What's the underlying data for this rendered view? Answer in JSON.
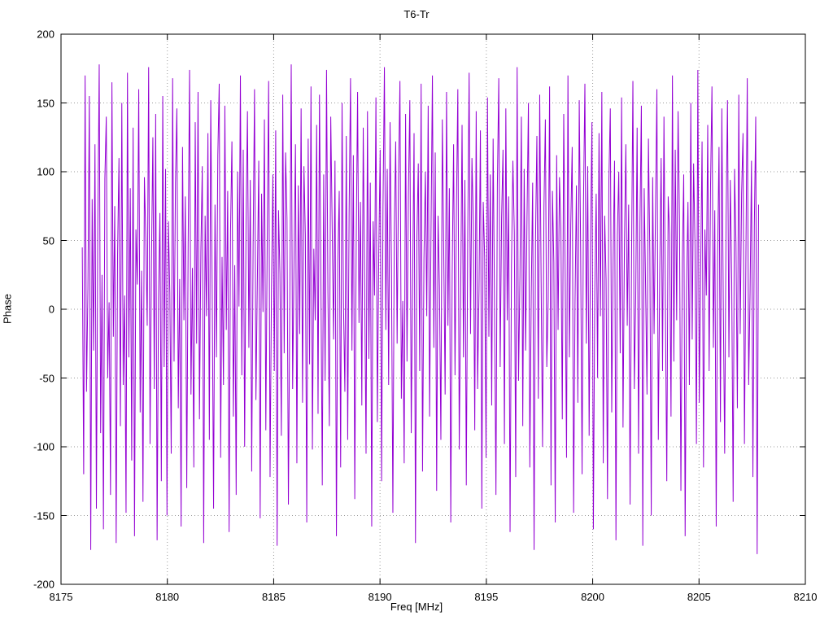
{
  "chart_data": {
    "type": "line",
    "title": "T6-Tr",
    "xlabel": "Freq [MHz]",
    "ylabel": "Phase",
    "xlim": [
      8175,
      8210
    ],
    "ylim": [
      -200,
      200
    ],
    "x_ticks": [
      8175,
      8180,
      8185,
      8190,
      8195,
      8200,
      8205,
      8210
    ],
    "y_ticks": [
      -200,
      -150,
      -100,
      -50,
      0,
      50,
      100,
      150,
      200
    ],
    "grid": "dotted",
    "legend": "none",
    "line_color": "#9400D3",
    "series": [
      {
        "name": "Phase",
        "x_start": 8176.0,
        "x_end": 8207.8,
        "values": [
          45,
          -120,
          170,
          -60,
          15,
          155,
          -175,
          80,
          -30,
          120,
          -145,
          60,
          178,
          -90,
          25,
          -160,
          95,
          140,
          -50,
          5,
          -135,
          165,
          -20,
          75,
          -170,
          40,
          110,
          -85,
          150,
          -55,
          10,
          -148,
          172,
          -35,
          88,
          -110,
          132,
          -165,
          58,
          18,
          160,
          -75,
          28,
          -140,
          96,
          52,
          -12,
          176,
          -98,
          34,
          125,
          -58,
          142,
          -168,
          8,
          70,
          -125,
          155,
          -42,
          102,
          -150,
          64,
          12,
          -105,
          168,
          -38,
          92,
          146,
          -72,
          22,
          -158,
          118,
          -8,
          82,
          -130,
          48,
          174,
          -62,
          30,
          -115,
          136,
          -25,
          158,
          -80,
          42,
          104,
          -170,
          68,
          -5,
          128,
          -95,
          152,
          16,
          -145,
          76,
          -35,
          112,
          164,
          -108,
          38,
          -55,
          148,
          -15,
          86,
          -162,
          56,
          122,
          -78,
          32,
          -135,
          100,
          2,
          170,
          -48,
          116,
          -100,
          62,
          144,
          -28,
          94,
          -118,
          46,
          160,
          -66,
          20,
          108,
          -152,
          84,
          -2,
          138,
          -88,
          50,
          166,
          -122,
          14,
          98,
          -45,
          130,
          -172,
          72,
          26,
          -92,
          156,
          -32,
          114,
          66,
          -142,
          6,
          178,
          -58,
          36,
          120,
          -112,
          90,
          -18,
          146,
          -68,
          104,
          54,
          -155,
          124,
          -40,
          162,
          -102,
          44,
          -8,
          134,
          -76,
          156,
          24,
          -128,
          98,
          -52,
          174,
          12,
          -85,
          140,
          60,
          -22,
          108,
          -165,
          34,
          86,
          -115,
          150,
          4,
          -60,
          126,
          -95,
          70,
          168,
          -30,
          112,
          -138,
          46,
          158,
          -10,
          78,
          -70,
          132,
          18,
          -105,
          144,
          -36,
          92,
          -158,
          64,
          10,
          154,
          -82,
          40,
          116,
          -125,
          74,
          176,
          -15,
          102,
          -55,
          136,
          30,
          -148,
          58,
          122,
          -25,
          96,
          166,
          -65,
          6,
          -112,
          142,
          -38,
          84,
          152,
          -90,
          20,
          128,
          -170,
          52,
          106,
          -45,
          164,
          -118,
          36,
          100,
          -5,
          148,
          -78,
          56,
          170,
          -28,
          114,
          -132,
          68,
          16,
          -95,
          138,
          44,
          -62,
          158,
          -12,
          88,
          -155,
          26,
          120,
          -48,
          72,
          160,
          -102,
          8,
          134,
          -35,
          94,
          -128,
          50,
          172,
          -18,
          110,
          62,
          -88,
          144,
          -58,
          14,
          130,
          -145,
          78,
          38,
          -108,
          154,
          -20,
          98,
          -70,
          124,
          2,
          -135,
          90,
          168,
          -42,
          66,
          116,
          -98,
          146,
          -8,
          82,
          -162,
          32,
          108,
          56,
          -122,
          176,
          -52,
          24,
          140,
          -85,
          102,
          -30,
          66,
          150,
          -115,
          10,
          92,
          -175,
          48,
          126,
          -65,
          156,
          20,
          -100,
          74,
          138,
          -42,
          6,
          162,
          -128,
          86,
          34,
          -155,
          112,
          -15,
          96,
          58,
          -80,
          142,
          28,
          -108,
          170,
          -35,
          62,
          118,
          -148,
          4,
          90,
          -68,
          152,
          42,
          -120,
          76,
          164,
          -25,
          104,
          -92,
          50,
          136,
          -160,
          12,
          84,
          -50,
          128,
          -5,
          158,
          -112,
          68,
          22,
          -138,
          94,
          146,
          -75,
          36,
          108,
          -168,
          54,
          100,
          -32,
          154,
          -86,
          46,
          120,
          -12,
          76,
          -142,
          30,
          166,
          -58,
          8,
          132,
          -105,
          62,
          148,
          -172,
          88,
          16,
          -62,
          124,
          40,
          -150,
          96,
          -18,
          70,
          160,
          -95,
          26,
          110,
          -45,
          140,
          4,
          -125,
          82,
          54,
          -78,
          170,
          -38,
          116,
          -8,
          144,
          64,
          -132,
          34,
          98,
          -165,
          14,
          78,
          -55,
          150,
          -22,
          106,
          46,
          -98,
          174,
          -68,
          28,
          122,
          -115,
          58,
          10,
          134,
          -45,
          90,
          162,
          -28,
          72,
          -158,
          38,
          118,
          -82,
          146,
          6,
          -105,
          66,
          152,
          -35,
          94,
          20,
          -140,
          102,
          48,
          -72,
          156,
          -18,
          84,
          128,
          -98,
          32,
          168,
          -55,
          12,
          108,
          -122,
          60,
          140,
          -178,
          76
        ]
      }
    ]
  }
}
